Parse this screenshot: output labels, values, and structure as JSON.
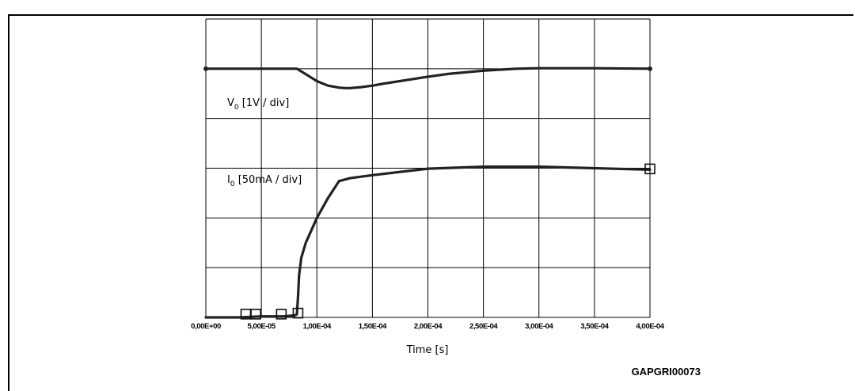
{
  "figure": {
    "ref_code": "GAPGRI00073",
    "caption_fragment": ""
  },
  "chart_data": {
    "type": "line",
    "title": "",
    "xlabel": "Time [s]",
    "ylabel": "",
    "xlim": [
      0,
      0.0004
    ],
    "ylim": [
      0,
      6
    ],
    "x_ticks": [
      "0,00E+00",
      "5,00E-05",
      "1,00E-04",
      "1,50E-04",
      "2,00E-04",
      "2,50E-04",
      "3,00E-04",
      "3,50E-04",
      "4,00E-04"
    ],
    "grid": true,
    "annotations": {
      "vo": {
        "main": "V",
        "sub": "0",
        "rest": " [1V / div]"
      },
      "io": {
        "main": "I",
        "sub": "0",
        "rest": " [50mA / div]"
      }
    },
    "series": [
      {
        "name": "V0",
        "color": "#222222",
        "x": [
          0,
          5e-05,
          8.2e-05,
          9e-05,
          0.0001,
          0.00011,
          0.00012,
          0.000125,
          0.00013,
          0.00014,
          0.00015,
          0.00016,
          0.00018,
          0.0002,
          0.00022,
          0.00025,
          0.00028,
          0.0003,
          0.00035,
          0.0004
        ],
        "y": [
          5.0,
          5.0,
          5.0,
          4.89,
          4.75,
          4.66,
          4.62,
          4.61,
          4.61,
          4.63,
          4.66,
          4.7,
          4.77,
          4.84,
          4.9,
          4.96,
          5.0,
          5.01,
          5.01,
          5.0
        ]
      },
      {
        "name": "I0",
        "color": "#222222",
        "x": [
          0,
          3e-05,
          5e-05,
          7e-05,
          8e-05,
          8.2e-05,
          8.3e-05,
          8.4e-05,
          8.6e-05,
          9e-05,
          0.0001,
          0.00011,
          0.00012,
          0.00013,
          0.00015,
          0.0002,
          0.00025,
          0.0003,
          0.00035,
          0.0004
        ],
        "y": [
          0,
          0,
          0.02,
          0.02,
          0.04,
          0.06,
          0.4,
          0.85,
          1.2,
          1.5,
          2.0,
          2.4,
          2.74,
          2.8,
          2.86,
          2.99,
          3.03,
          3.03,
          3.0,
          2.97
        ]
      }
    ],
    "markers": [
      {
        "x": 3.6e-05,
        "y": 0.05
      },
      {
        "x": 4.5e-05,
        "y": 0.05
      },
      {
        "x": 6.8e-05,
        "y": 0.05
      },
      {
        "x": 8.3e-05,
        "y": 0.07
      },
      {
        "x": 0.0004,
        "y": 2.97
      }
    ]
  }
}
